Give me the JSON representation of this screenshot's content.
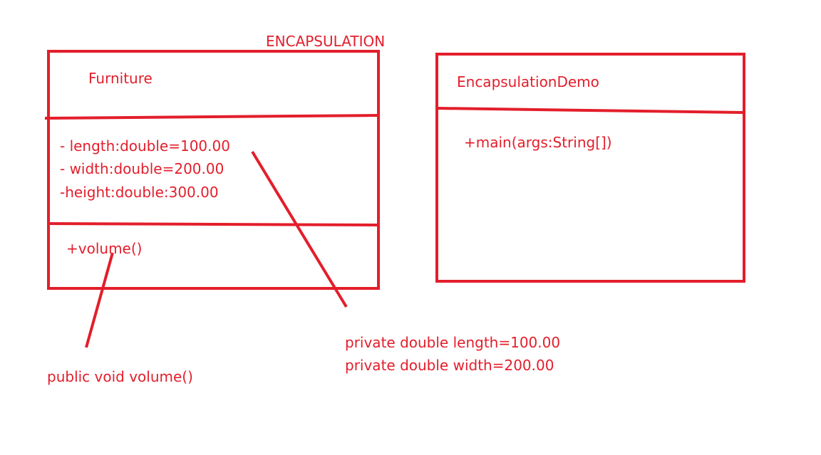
{
  "diagram": {
    "title": "ENCAPSULATION",
    "accent_color": "#e31e2b",
    "classes": [
      {
        "name": "Furniture",
        "attributes": [
          "- length:double=100.00",
          "- width:double=200.00",
          "-height:double:300.00"
        ],
        "methods": [
          "+volume()"
        ]
      },
      {
        "name": "EncapsulationDemo",
        "attributes": [],
        "methods": [
          "+main(args:String[])"
        ]
      }
    ],
    "annotations": {
      "method_note": "public void volume()",
      "attribute_note": [
        "private double length=100.00",
        "private double width=200.00"
      ]
    }
  }
}
